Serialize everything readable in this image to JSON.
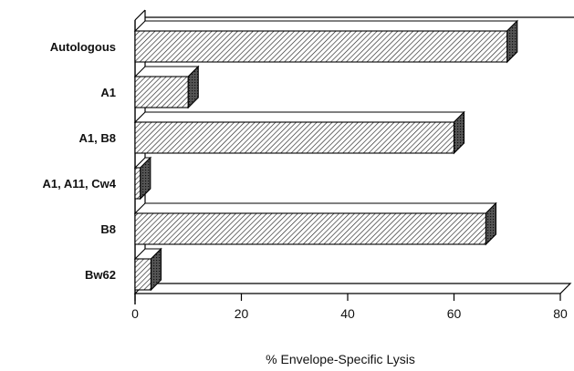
{
  "chart_data": {
    "type": "bar",
    "orientation": "horizontal",
    "style": "3d-hatched",
    "categories": [
      "Autologous",
      "A1",
      "A1, B8",
      "A1, A11, Cw4",
      "B8",
      "Bw62"
    ],
    "values": [
      70,
      10,
      60,
      1,
      66,
      3
    ],
    "xlabel": "% Envelope-Specific Lysis",
    "xlim": [
      0,
      80
    ],
    "xticks": [
      "0",
      "20",
      "40",
      "60",
      "80"
    ],
    "grid": false,
    "colors": {
      "bar_face": "#ffffff",
      "hatch": "#222222",
      "end_shade": "#333333",
      "outline": "#000000"
    }
  }
}
